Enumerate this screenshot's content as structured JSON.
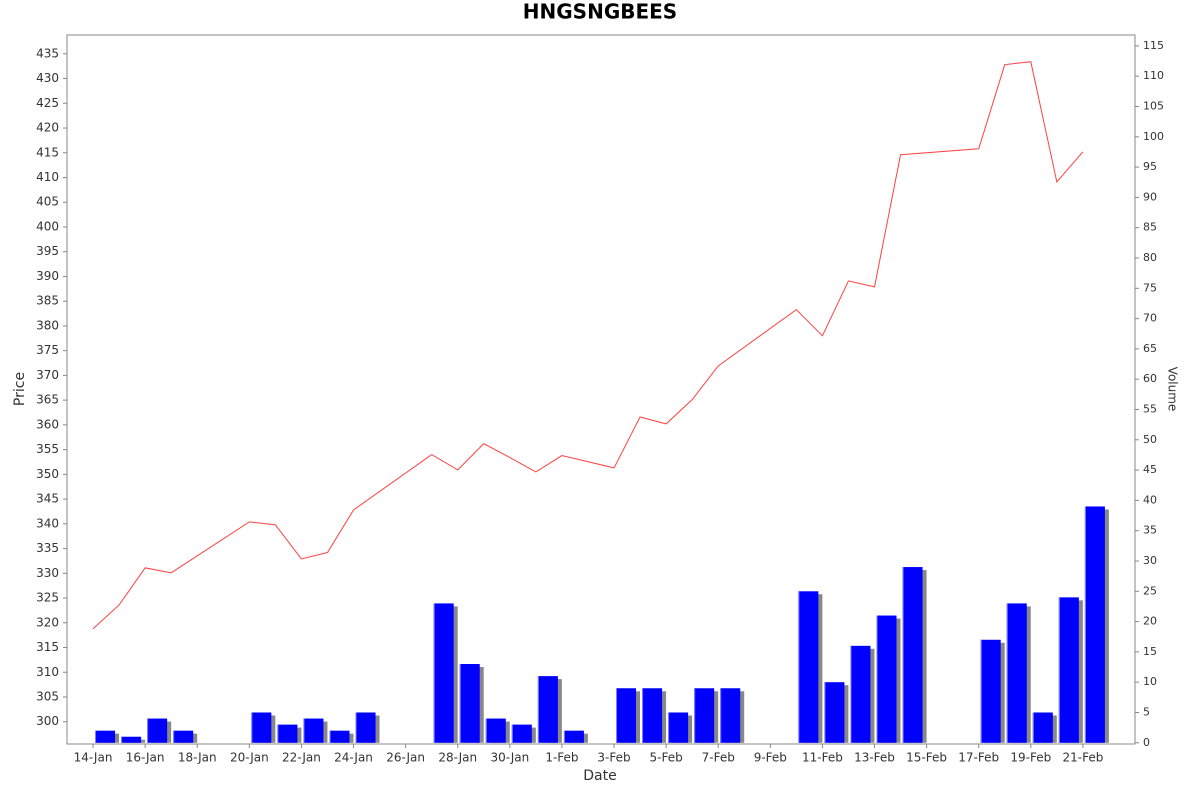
{
  "chart_data": {
    "type": "price-volume",
    "title": "HNGSNGBEES",
    "x_label": "Date",
    "y_label": "Price",
    "y2_label": "Volume",
    "x": [
      "14-Jan",
      "15-Jan",
      "16-Jan",
      "17-Jan",
      "20-Jan",
      "21-Jan",
      "22-Jan",
      "23-Jan",
      "24-Jan",
      "27-Jan",
      "28-Jan",
      "29-Jan",
      "30-Jan",
      "31-Jan",
      "1-Feb",
      "3-Feb",
      "4-Feb",
      "5-Feb",
      "6-Feb",
      "7-Feb",
      "10-Feb",
      "11-Feb",
      "12-Feb",
      "13-Feb",
      "14-Feb",
      "17-Feb",
      "18-Feb",
      "19-Feb",
      "20-Feb",
      "21-Feb"
    ],
    "series": [
      {
        "name": "Price",
        "color": "#ff4040",
        "values": [
          318.8,
          323.6,
          331.1,
          330.1,
          340.4,
          339.8,
          332.9,
          334.2,
          342.8,
          354.0,
          350.9,
          356.2,
          353.4,
          350.5,
          353.8,
          351.3,
          361.6,
          360.2,
          365.1,
          371.9,
          383.3,
          378.0,
          389.1,
          387.9,
          414.6,
          415.8,
          432.8,
          433.4,
          409.1,
          415.2
        ]
      },
      {
        "name": "Volume",
        "color": "#0000ff",
        "axis": "y2",
        "values": [
          2,
          1,
          4,
          2,
          5,
          3,
          4,
          2,
          5,
          23,
          13,
          4,
          3,
          11,
          2,
          9,
          9,
          5,
          9,
          9,
          25,
          10,
          16,
          21,
          29,
          17,
          23,
          5,
          24,
          39
        ]
      }
    ],
    "xlim": [
      "13-Jan",
      "23-Feb"
    ],
    "xticks": [
      "14-Jan",
      "16-Jan",
      "18-Jan",
      "20-Jan",
      "22-Jan",
      "24-Jan",
      "26-Jan",
      "28-Jan",
      "30-Jan",
      "1-Feb",
      "3-Feb",
      "5-Feb",
      "7-Feb",
      "9-Feb",
      "11-Feb",
      "13-Feb",
      "15-Feb",
      "17-Feb",
      "19-Feb",
      "21-Feb"
    ],
    "ylim": [
      295.5,
      438.8
    ],
    "yticks": [
      300,
      305,
      310,
      315,
      320,
      325,
      330,
      335,
      340,
      345,
      350,
      355,
      360,
      365,
      370,
      375,
      380,
      385,
      390,
      395,
      400,
      405,
      410,
      415,
      420,
      425,
      430,
      435
    ],
    "y2lim": [
      -0.2,
      116.8
    ],
    "y2ticks": [
      0,
      5,
      10,
      15,
      20,
      25,
      30,
      35,
      40,
      45,
      50,
      55,
      60,
      65,
      70,
      75,
      80,
      85,
      90,
      95,
      100,
      105,
      110,
      115
    ]
  }
}
